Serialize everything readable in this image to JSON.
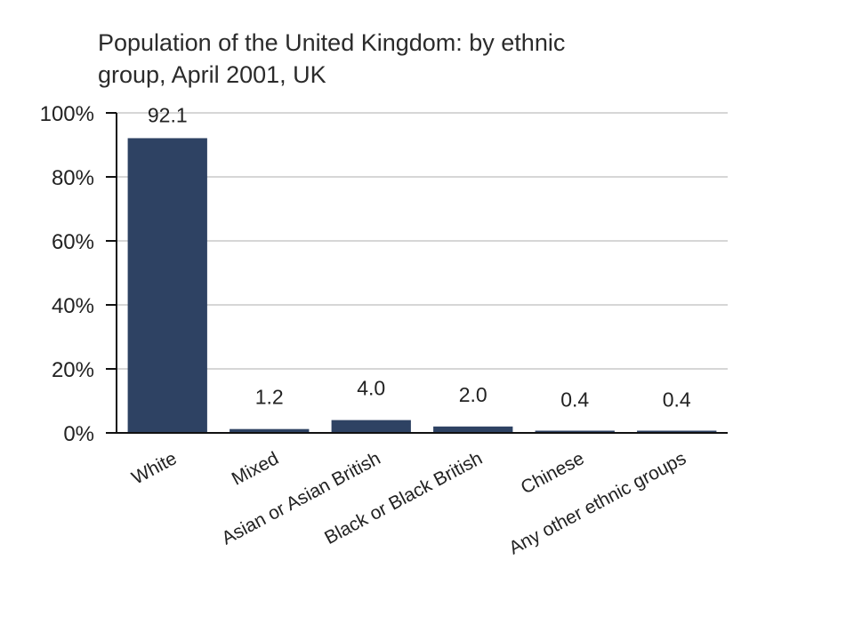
{
  "chart_data": {
    "type": "bar",
    "title_line1": "Population of the United Kingdom: by ethnic",
    "title_line2": "group, April 2001, UK",
    "categories": [
      "White",
      "Mixed",
      "Asian or Asian British",
      "Black or Black British",
      "Chinese",
      "Any other ethnic groups"
    ],
    "values": [
      92.1,
      1.2,
      4.0,
      2.0,
      0.4,
      0.4
    ],
    "value_labels": [
      "92.1",
      "1.2",
      "4.0",
      "2.0",
      "0.4",
      "0.4"
    ],
    "ylim": [
      0,
      100
    ],
    "yticks": [
      0,
      20,
      40,
      60,
      80,
      100
    ],
    "ytick_labels": [
      "0%",
      "20%",
      "40%",
      "60%",
      "80%",
      "100%"
    ],
    "xlabel": "",
    "ylabel": "",
    "grid": true,
    "bar_color": "#2e4263",
    "grid_color": "#c8c8c8"
  }
}
